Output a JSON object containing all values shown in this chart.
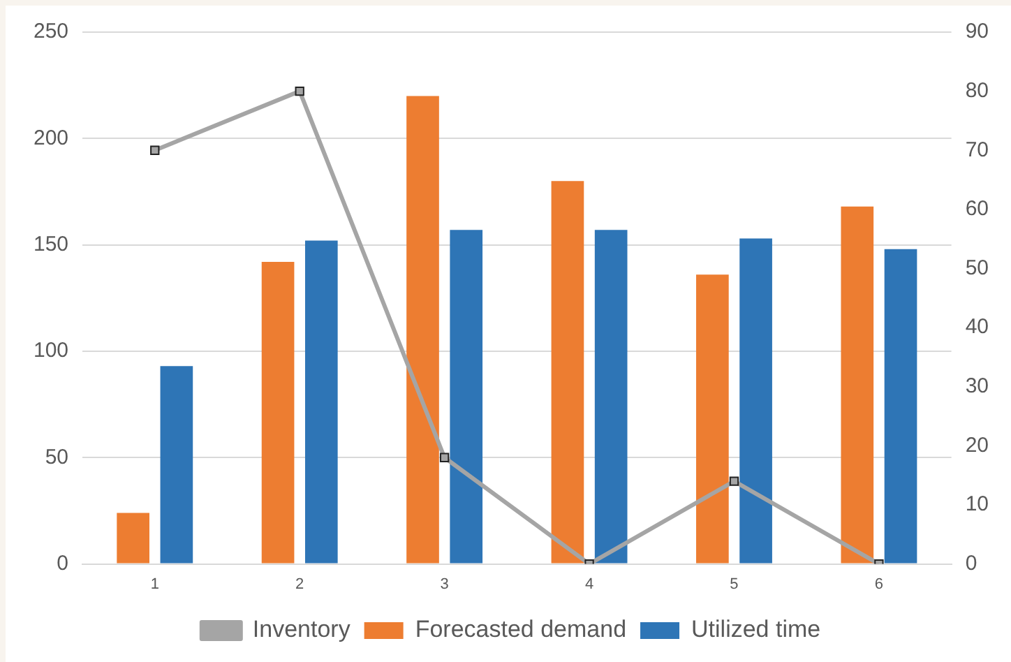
{
  "chart_data": {
    "type": "bar",
    "categories": [
      "1",
      "2",
      "3",
      "4",
      "5",
      "6"
    ],
    "series": [
      {
        "name": "Forecasted demand",
        "color": "#ed7d31",
        "values": [
          24,
          142,
          220,
          180,
          136,
          168
        ]
      },
      {
        "name": "Utilized time",
        "color": "#2e75b6",
        "values": [
          93,
          152,
          157,
          157,
          153,
          148
        ]
      },
      {
        "name": "Inventory",
        "type": "line",
        "axis": "y2",
        "color": "#a5a5a5",
        "marker": "square",
        "values": [
          70,
          80,
          18,
          0,
          14,
          0
        ]
      }
    ],
    "ylim": [
      0,
      250
    ],
    "yticks": [
      0,
      50,
      100,
      150,
      200,
      250
    ],
    "y2lim": [
      0,
      90
    ],
    "y2ticks": [
      0,
      10,
      20,
      30,
      40,
      50,
      60,
      70,
      80,
      90
    ],
    "grid": "y",
    "legend": "bottom"
  }
}
